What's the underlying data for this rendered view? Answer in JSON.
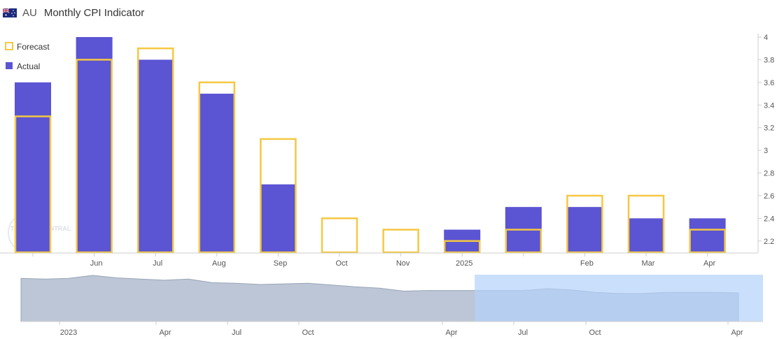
{
  "header": {
    "country": "AU",
    "title": "Monthly CPI Indicator",
    "flag_icon": "australia-flag-icon"
  },
  "legend": {
    "forecast_label": "Forecast",
    "actual_label": "Actual"
  },
  "watermark": "TRADING CENTRAL",
  "colors": {
    "actual": "#5b54d3",
    "forecast": "#f5c842",
    "navigator_fill": "#bcc6d6",
    "navigator_selection": "#b4d2fa",
    "axis_text": "#555555"
  },
  "chart_data": [
    {
      "type": "bar",
      "title": "Monthly CPI Indicator",
      "categories": [
        "",
        "Jun",
        "Jul",
        "Aug",
        "Sep",
        "Oct",
        "Nov",
        "2025",
        "",
        "Feb",
        "Mar",
        "Apr"
      ],
      "series": [
        {
          "name": "Actual",
          "values": [
            3.6,
            4.0,
            3.8,
            3.5,
            2.7,
            2.1,
            2.1,
            2.3,
            2.5,
            2.5,
            2.4,
            2.4
          ]
        },
        {
          "name": "Forecast",
          "values": [
            3.3,
            3.8,
            3.9,
            3.6,
            3.1,
            2.4,
            2.3,
            2.2,
            2.3,
            2.6,
            2.6,
            2.3
          ]
        }
      ],
      "ylim": [
        2.1,
        4.0
      ],
      "yticks": [
        "4",
        "3.8",
        "3.6",
        "3.4",
        "3.2",
        "3",
        "2.8",
        "2.6",
        "2.4",
        "2.2"
      ],
      "ytick_values": [
        4,
        3.8,
        3.6,
        3.4,
        3.2,
        3.0,
        2.8,
        2.6,
        2.4,
        2.2
      ],
      "y_axis_side": "right",
      "legend_position": "top-left",
      "grid": false
    },
    {
      "type": "area",
      "role": "navigator",
      "x_labels": [
        "2023",
        "Apr",
        "Jul",
        "Oct",
        "Apr",
        "Jul",
        "Oct",
        "Apr"
      ],
      "values": [
        6.9,
        6.8,
        6.9,
        7.4,
        7.0,
        6.8,
        6.6,
        6.8,
        6.2,
        6.1,
        5.9,
        6.0,
        6.1,
        5.8,
        5.5,
        5.3,
        4.8,
        4.9,
        4.9,
        4.9,
        4.9,
        4.9,
        5.2,
        5.0,
        4.6,
        4.4,
        4.4,
        4.6,
        4.6,
        4.6,
        4.5
      ],
      "selection": {
        "start_index": 19,
        "end_index": 30
      }
    }
  ]
}
